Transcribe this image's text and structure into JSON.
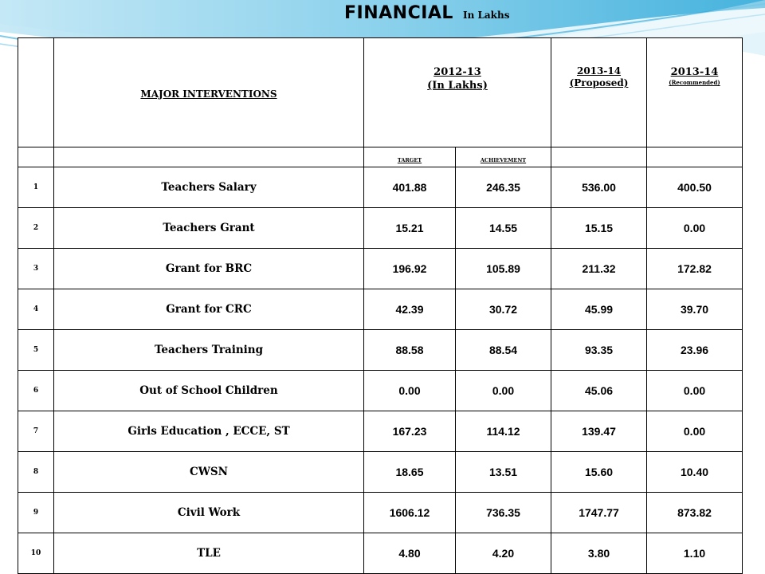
{
  "title": {
    "main": "FINANCIAL",
    "sub": "In Lakhs"
  },
  "header": {
    "interventions": "MAJOR INTERVENTIONS",
    "period1_line1": "2012-13",
    "period1_line2": "(In Lakhs)",
    "period2_line1": "2013-14",
    "period2_line2": "(Proposed)",
    "period3_line1": "2013-14",
    "period3_line2": "(Recommended)",
    "target": "TARGET",
    "achievement": "ACHIEVEMENT"
  },
  "rows": [
    {
      "no": "1",
      "name": "Teachers Salary",
      "target": "401.88",
      "achievement": "246.35",
      "proposed": "536.00",
      "recommended": "400.50"
    },
    {
      "no": "2",
      "name": "Teachers Grant",
      "target": "15.21",
      "achievement": "14.55",
      "proposed": "15.15",
      "recommended": "0.00"
    },
    {
      "no": "3",
      "name": "Grant for BRC",
      "target": "196.92",
      "achievement": "105.89",
      "proposed": "211.32",
      "recommended": "172.82"
    },
    {
      "no": "4",
      "name": "Grant for CRC",
      "target": "42.39",
      "achievement": "30.72",
      "proposed": "45.99",
      "recommended": "39.70"
    },
    {
      "no": "5",
      "name": "Teachers Training",
      "target": "88.58",
      "achievement": "88.54",
      "proposed": "93.35",
      "recommended": "23.96"
    },
    {
      "no": "6",
      "name": "Out of School Children",
      "target": "0.00",
      "achievement": "0.00",
      "proposed": "45.06",
      "recommended": "0.00"
    },
    {
      "no": "7",
      "name": "Girls Education , ECCE, ST",
      "target": "167.23",
      "achievement": "114.12",
      "proposed": "139.47",
      "recommended": "0.00"
    },
    {
      "no": "8",
      "name": "CWSN",
      "target": "18.65",
      "achievement": "13.51",
      "proposed": "15.60",
      "recommended": "10.40"
    },
    {
      "no": "9",
      "name": "Civil Work",
      "target": "1606.12",
      "achievement": "736.35",
      "proposed": "1747.77",
      "recommended": "873.82"
    },
    {
      "no": "10",
      "name": "TLE",
      "target": "4.80",
      "achievement": "4.20",
      "proposed": "3.80",
      "recommended": "1.10"
    }
  ],
  "colors": {
    "swoosh_dark": "#2aa7d8",
    "swoosh_light": "#bfe6f5"
  }
}
